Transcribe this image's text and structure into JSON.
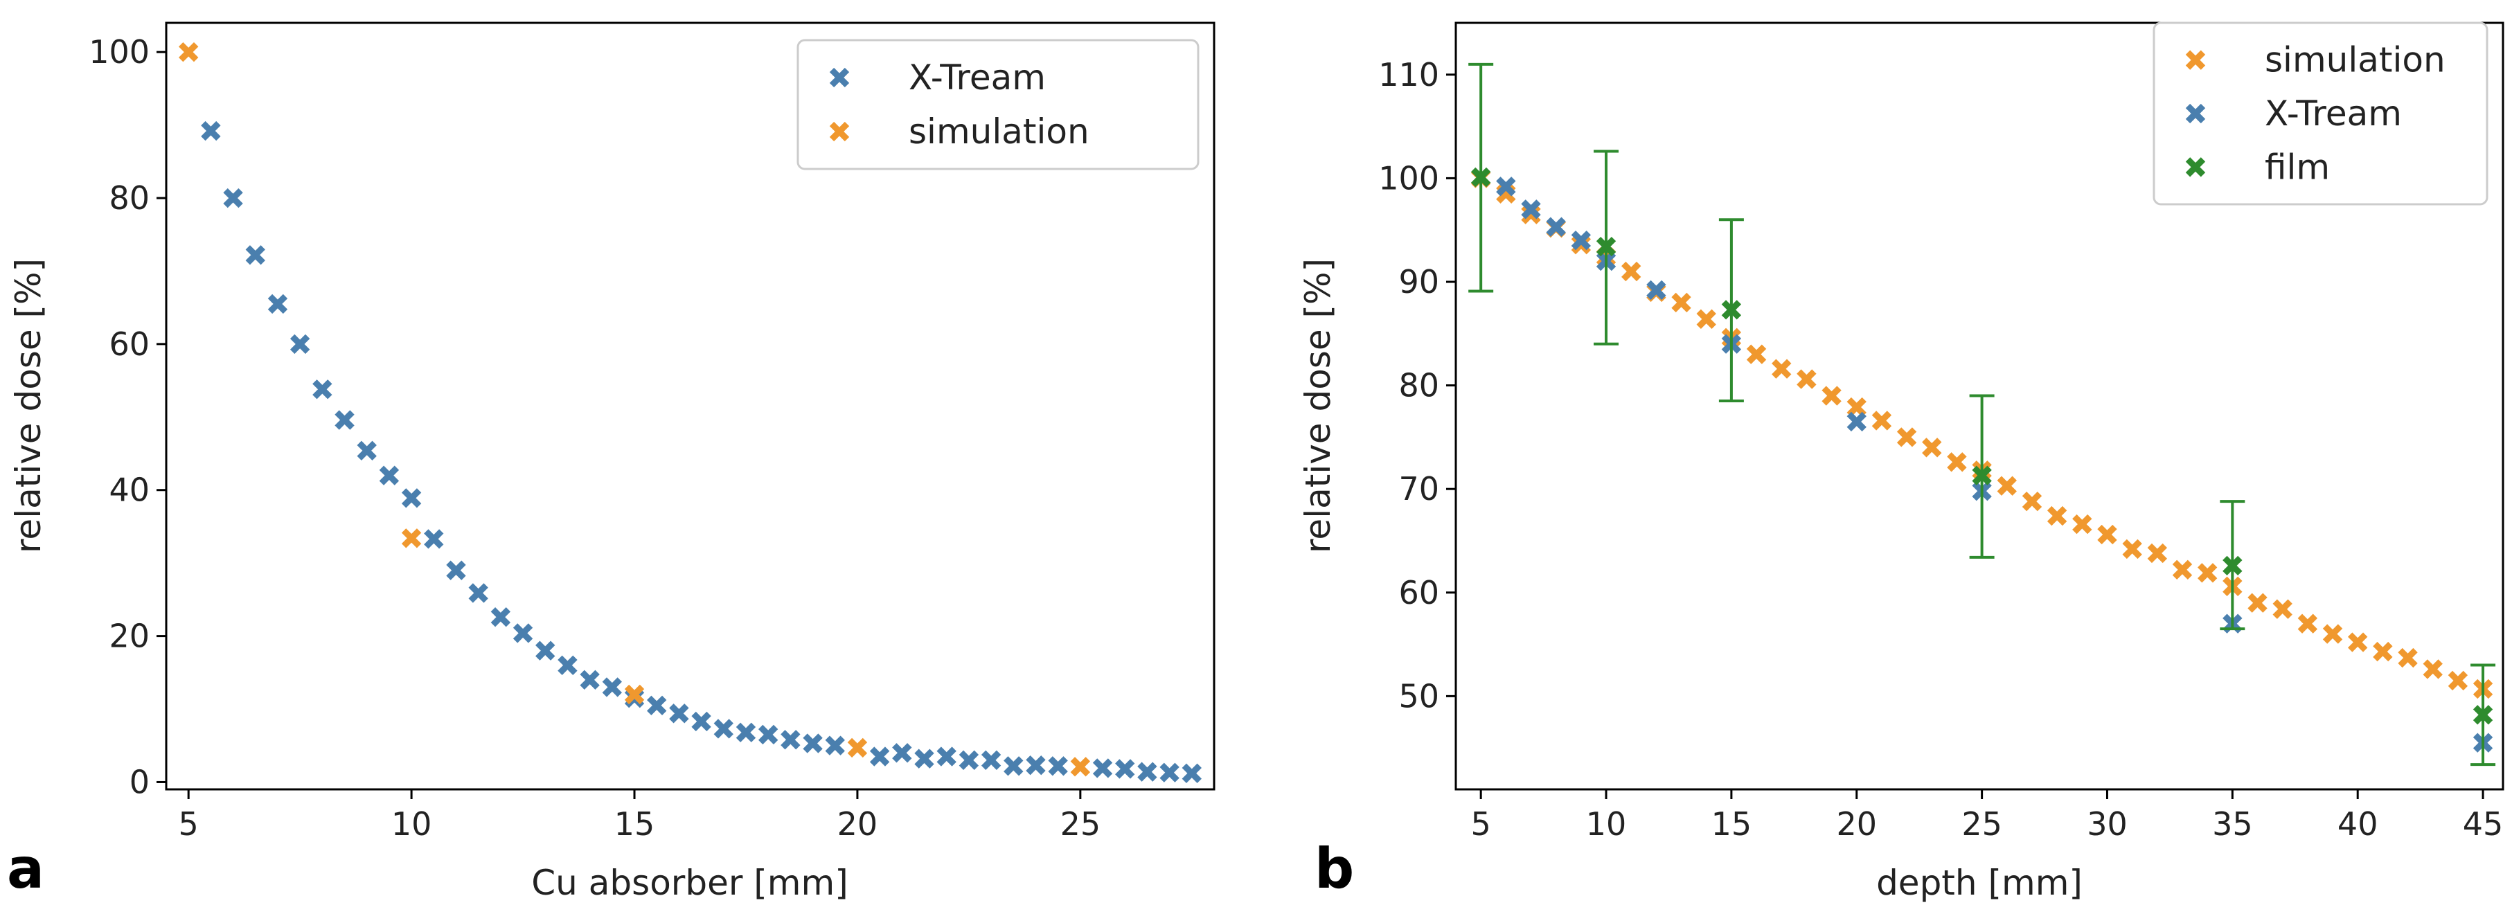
{
  "chart_data": [
    {
      "type": "scatter",
      "panel_label": "a",
      "xlabel": "Cu absorber [mm]",
      "ylabel": "relative dose [%]",
      "xlim": [
        4.5,
        28.0
      ],
      "ylim": [
        -1,
        104
      ],
      "xticks": [
        5,
        10,
        15,
        20,
        25
      ],
      "yticks": [
        0,
        20,
        40,
        60,
        80,
        100
      ],
      "legend_position": "top-right",
      "series": [
        {
          "name": "X-Tream",
          "color": "#4a7fae",
          "x": [
            5.5,
            6,
            6.5,
            7,
            7.5,
            8,
            8.5,
            9,
            9.5,
            10,
            10.5,
            11,
            11.5,
            12,
            12.5,
            13,
            13.5,
            14,
            14.5,
            15,
            15.5,
            16,
            16.5,
            17,
            17.5,
            18,
            18.5,
            19,
            19.5,
            20.5,
            21,
            21.5,
            22,
            22.5,
            23,
            23.5,
            24,
            24.5,
            25.5,
            26,
            26.5,
            27,
            27.5
          ],
          "y": [
            89.2,
            80,
            72.2,
            65.5,
            60,
            53.8,
            49.6,
            45.4,
            42,
            38.9,
            33.3,
            29,
            25.9,
            22.6,
            20.4,
            18,
            16,
            14,
            13,
            11.5,
            10.5,
            9.4,
            8.3,
            7.3,
            6.8,
            6.5,
            5.8,
            5.3,
            5,
            3.5,
            4,
            3.2,
            3.5,
            3,
            3,
            2.2,
            2.3,
            2.2,
            1.9,
            1.8,
            1.4,
            1.3,
            1.2
          ]
        },
        {
          "name": "simulation",
          "color": "#f0982e",
          "x": [
            5,
            10,
            15,
            20,
            25
          ],
          "y": [
            100,
            33.4,
            12,
            4.7,
            2.1
          ]
        }
      ]
    },
    {
      "type": "scatter",
      "panel_label": "b",
      "xlabel": "depth [mm]",
      "ylabel": "relative dose [%]",
      "xlim": [
        4.0,
        45.8
      ],
      "ylim": [
        41,
        115
      ],
      "xticks": [
        5,
        10,
        15,
        20,
        25,
        30,
        35,
        40,
        45
      ],
      "yticks": [
        50,
        60,
        70,
        80,
        90,
        100,
        110
      ],
      "legend_position": "top-right",
      "series": [
        {
          "name": "simulation",
          "color": "#f0982e",
          "x": [
            5,
            6,
            7,
            8,
            9,
            10,
            11,
            12,
            13,
            14,
            15,
            16,
            17,
            18,
            19,
            20,
            21,
            22,
            23,
            24,
            25,
            26,
            27,
            28,
            29,
            30,
            31,
            32,
            33,
            34,
            35,
            36,
            37,
            38,
            39,
            40,
            41,
            42,
            43,
            44,
            45
          ],
          "y": [
            100,
            98.5,
            96.5,
            95.2,
            93.6,
            92.4,
            91,
            89,
            88,
            86.4,
            84.6,
            83,
            81.6,
            80.6,
            79,
            77.9,
            76.6,
            75,
            74,
            72.6,
            71.8,
            70.3,
            68.8,
            67.4,
            66.6,
            65.6,
            64.2,
            63.8,
            62.2,
            61.9,
            60.6,
            59,
            58.4,
            57,
            56,
            55.2,
            54.3,
            53.7,
            52.6,
            51.5,
            50.7
          ]
        },
        {
          "name": "X-Tream",
          "color": "#4a7fae",
          "x": [
            6,
            7,
            8,
            9,
            10,
            12,
            15,
            20,
            25,
            35,
            45
          ],
          "y": [
            99.2,
            97,
            95.3,
            94,
            92,
            89.2,
            84,
            76.5,
            69.8,
            57,
            45.5
          ]
        },
        {
          "name": "film",
          "color": "#2e8b2e",
          "x": [
            5,
            10,
            15,
            25,
            35,
            45
          ],
          "y": [
            100.1,
            93.4,
            87.3,
            71.3,
            62.6,
            48.2
          ],
          "error_low": [
            89.1,
            84,
            78.5,
            63.4,
            56.5,
            43.4
          ],
          "error_high": [
            111,
            102.6,
            96,
            79,
            68.8,
            53
          ]
        }
      ]
    }
  ]
}
